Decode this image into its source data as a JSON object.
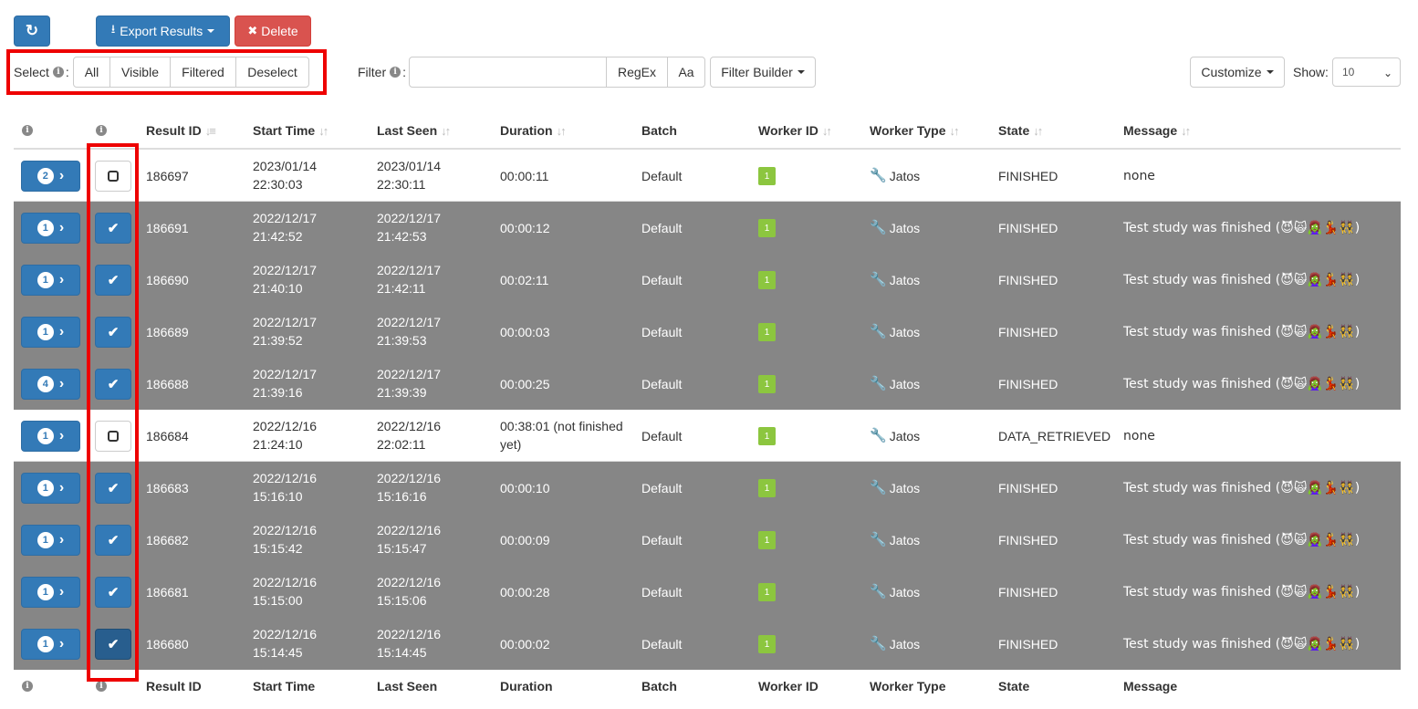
{
  "toolbar": {
    "refresh_icon": "refresh-icon",
    "export_label": "Export Results",
    "delete_label": "Delete",
    "select_label": "Select",
    "select_options": [
      "All",
      "Visible",
      "Filtered",
      "Deselect"
    ],
    "filter_label": "Filter",
    "filter_value": "",
    "regex_label": "RegEx",
    "case_label": "Aa",
    "filter_builder_label": "Filter Builder",
    "customize_label": "Customize",
    "show_label": "Show:",
    "show_value": "10"
  },
  "table": {
    "headers": [
      "Result ID",
      "Start Time",
      "Last Seen",
      "Duration",
      "Batch",
      "Worker ID",
      "Worker Type",
      "State",
      "Message"
    ],
    "rows": [
      {
        "badge": "2",
        "checked": false,
        "id": "186697",
        "start_date": "2023/01/14",
        "start_time": "22:30:03",
        "last_date": "2023/01/14",
        "last_time": "22:30:11",
        "duration": "00:00:11",
        "duration2": "",
        "batch": "Default",
        "worker_id": "1",
        "worker_type": "Jatos",
        "state": "FINISHED",
        "message": "none"
      },
      {
        "badge": "1",
        "checked": true,
        "id": "186691",
        "start_date": "2022/12/17",
        "start_time": "21:42:52",
        "last_date": "2022/12/17",
        "last_time": "21:42:53",
        "duration": "00:00:12",
        "duration2": "",
        "batch": "Default",
        "worker_id": "1",
        "worker_type": "Jatos",
        "state": "FINISHED",
        "message": "Test study was finished (😈🙀🧟‍♀️💃👯)"
      },
      {
        "badge": "1",
        "checked": true,
        "id": "186690",
        "start_date": "2022/12/17",
        "start_time": "21:40:10",
        "last_date": "2022/12/17",
        "last_time": "21:42:11",
        "duration": "00:02:11",
        "duration2": "",
        "batch": "Default",
        "worker_id": "1",
        "worker_type": "Jatos",
        "state": "FINISHED",
        "message": "Test study was finished (😈🙀🧟‍♀️💃👯)"
      },
      {
        "badge": "1",
        "checked": true,
        "id": "186689",
        "start_date": "2022/12/17",
        "start_time": "21:39:52",
        "last_date": "2022/12/17",
        "last_time": "21:39:53",
        "duration": "00:00:03",
        "duration2": "",
        "batch": "Default",
        "worker_id": "1",
        "worker_type": "Jatos",
        "state": "FINISHED",
        "message": "Test study was finished (😈🙀🧟‍♀️💃👯)"
      },
      {
        "badge": "4",
        "checked": true,
        "id": "186688",
        "start_date": "2022/12/17",
        "start_time": "21:39:16",
        "last_date": "2022/12/17",
        "last_time": "21:39:39",
        "duration": "00:00:25",
        "duration2": "",
        "batch": "Default",
        "worker_id": "1",
        "worker_type": "Jatos",
        "state": "FINISHED",
        "message": "Test study was finished (😈🙀🧟‍♀️💃👯)"
      },
      {
        "badge": "1",
        "checked": false,
        "id": "186684",
        "start_date": "2022/12/16",
        "start_time": "21:24:10",
        "last_date": "2022/12/16",
        "last_time": "22:02:11",
        "duration": "00:38:01 (not finished",
        "duration2": "yet)",
        "batch": "Default",
        "worker_id": "1",
        "worker_type": "Jatos",
        "state": "DATA_RETRIEVED",
        "message": "none"
      },
      {
        "badge": "1",
        "checked": true,
        "id": "186683",
        "start_date": "2022/12/16",
        "start_time": "15:16:10",
        "last_date": "2022/12/16",
        "last_time": "15:16:16",
        "duration": "00:00:10",
        "duration2": "",
        "batch": "Default",
        "worker_id": "1",
        "worker_type": "Jatos",
        "state": "FINISHED",
        "message": "Test study was finished (😈🙀🧟‍♀️💃👯)"
      },
      {
        "badge": "1",
        "checked": true,
        "id": "186682",
        "start_date": "2022/12/16",
        "start_time": "15:15:42",
        "last_date": "2022/12/16",
        "last_time": "15:15:47",
        "duration": "00:00:09",
        "duration2": "",
        "batch": "Default",
        "worker_id": "1",
        "worker_type": "Jatos",
        "state": "FINISHED",
        "message": "Test study was finished (😈🙀🧟‍♀️💃👯)"
      },
      {
        "badge": "1",
        "checked": true,
        "id": "186681",
        "start_date": "2022/12/16",
        "start_time": "15:15:00",
        "last_date": "2022/12/16",
        "last_time": "15:15:06",
        "duration": "00:00:28",
        "duration2": "",
        "batch": "Default",
        "worker_id": "1",
        "worker_type": "Jatos",
        "state": "FINISHED",
        "message": "Test study was finished (😈🙀🧟‍♀️💃👯)"
      },
      {
        "badge": "1",
        "checked": true,
        "id": "186680",
        "start_date": "2022/12/16",
        "start_time": "15:14:45",
        "last_date": "2022/12/16",
        "last_time": "15:14:45",
        "duration": "00:00:02",
        "duration2": "",
        "batch": "Default",
        "worker_id": "1",
        "worker_type": "Jatos",
        "state": "FINISHED",
        "message": "Test study was finished (😈🙀🧟‍♀️💃👯)"
      }
    ]
  },
  "colors": {
    "primary": "#337ab7",
    "danger": "#d9534f",
    "row_dark": "#868686",
    "worker_badge": "#8cc63f",
    "highlight": "#ee0000"
  }
}
